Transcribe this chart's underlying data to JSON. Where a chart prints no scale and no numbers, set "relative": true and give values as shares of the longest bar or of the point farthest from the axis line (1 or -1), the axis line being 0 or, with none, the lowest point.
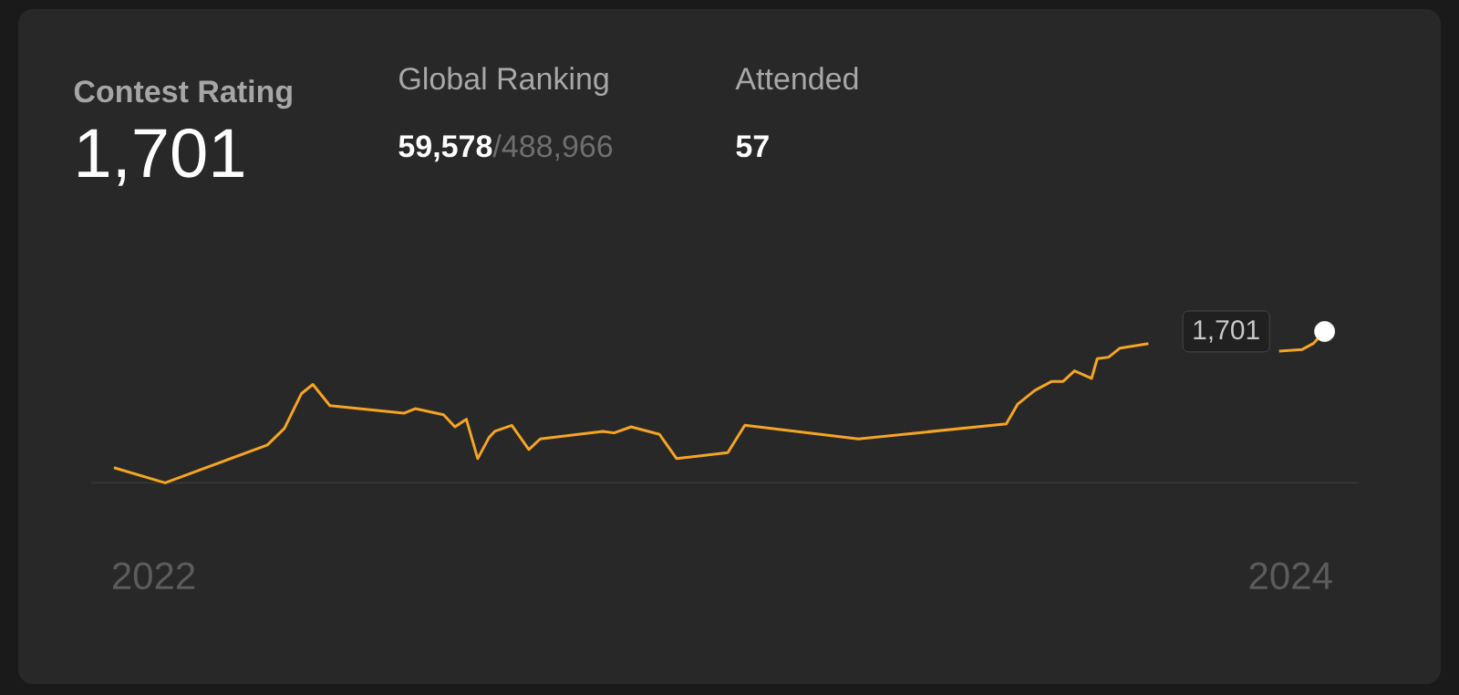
{
  "chart_data": {
    "type": "line",
    "title": "Contest Rating",
    "relative": true,
    "tick_labels": "x",
    "xlim": [
      2021.89,
      2024.12
    ],
    "xticks": [
      2022,
      2024
    ],
    "series": [
      {
        "type": "line",
        "color": "#f5a524",
        "x": [
          2021.93,
          2022.02,
          2022.2,
          2022.23,
          2022.26,
          2022.28,
          2022.31,
          2022.44,
          2022.46,
          2022.51,
          2022.53,
          2022.55,
          2022.57,
          2022.59,
          2022.6,
          2022.63,
          2022.66,
          2022.68,
          2022.79,
          2022.81,
          2022.84,
          2022.89,
          2022.92,
          2023.01,
          2023.04,
          2023.24,
          2023.5,
          2023.52,
          2023.55,
          2023.58,
          2023.6,
          2023.62,
          2023.65,
          2023.66,
          2023.68,
          2023.7,
          2023.75,
          2023.85,
          2023.98,
          2024.02,
          2024.04,
          2024.06
        ],
        "values": [
          0.1,
          0,
          0.25,
          0.36,
          0.59,
          0.65,
          0.51,
          0.46,
          0.49,
          0.45,
          0.37,
          0.42,
          0.16,
          0.3,
          0.34,
          0.38,
          0.22,
          0.29,
          0.34,
          0.33,
          0.37,
          0.32,
          0.16,
          0.2,
          0.38,
          0.29,
          0.39,
          0.52,
          0.61,
          0.67,
          0.67,
          0.74,
          0.69,
          0.82,
          0.83,
          0.89,
          0.92,
          null,
          0.87,
          0.88,
          0.92,
          1
        ]
      },
      {
        "type": "scatter",
        "color": "#ffffff",
        "x": [
          2024.06
        ],
        "values": [
          1
        ]
      }
    ],
    "annotations": [
      "1,701",
      "Global Ranking",
      "59,578",
      "/488,966",
      "Attended",
      "57",
      {
        "text": "1,701",
        "x": 2024.06,
        "y": 1
      }
    ]
  }
}
